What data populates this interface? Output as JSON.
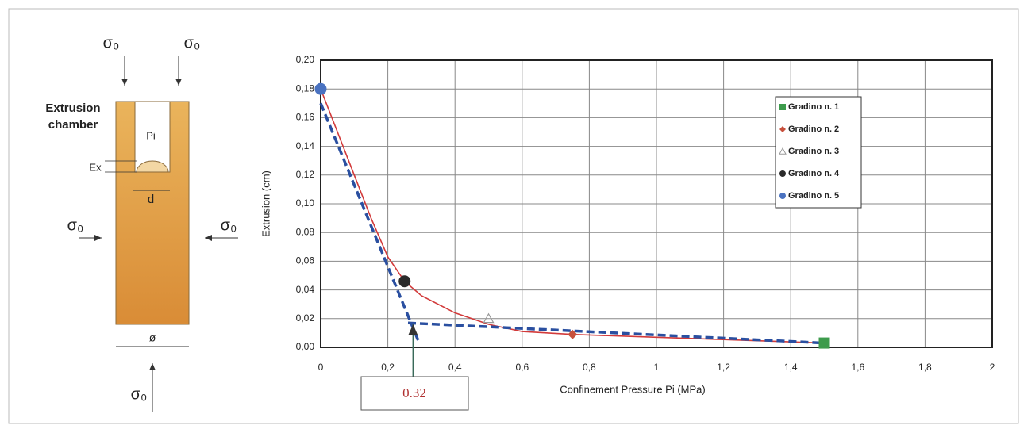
{
  "diagram": {
    "stress_labels": [
      "σ₀",
      "σ₀",
      "σ₀",
      "σ₀",
      "σ₀"
    ],
    "chamber_label": [
      "Extrusion",
      "chamber"
    ],
    "pressure_label": "Pi",
    "extrusion_label": "Ex",
    "diameter_label": "d",
    "width_label": "ø"
  },
  "chart_data": {
    "type": "scatter",
    "x_label": "Confinement Pressure Pi (MPa)",
    "y_label": "Extrusion (cm)",
    "xlim": [
      0,
      2
    ],
    "ylim": [
      0,
      0.2
    ],
    "xticks": [
      0,
      {
        "value": 0.2,
        "label": "0,2"
      },
      {
        "value": 0.4,
        "label": "0,4"
      },
      {
        "value": 0.6,
        "label": "0,6"
      },
      {
        "value": 0.8,
        "label": "0,8"
      },
      1,
      {
        "value": 1.2,
        "label": "1,2"
      },
      {
        "value": 1.4,
        "label": "1,4"
      },
      {
        "value": 1.6,
        "label": "1,6"
      },
      {
        "value": 1.8,
        "label": "1,8"
      },
      2
    ],
    "yticks": [
      {
        "value": 0,
        "label": "0,00"
      },
      {
        "value": 0.02,
        "label": "0,02"
      },
      {
        "value": 0.04,
        "label": "0,04"
      },
      {
        "value": 0.06,
        "label": "0,06"
      },
      {
        "value": 0.08,
        "label": "0,08"
      },
      {
        "value": 0.1,
        "label": "0,10"
      },
      {
        "value": 0.12,
        "label": "0,12"
      },
      {
        "value": 0.14,
        "label": "0,14"
      },
      {
        "value": 0.16,
        "label": "0,16"
      },
      {
        "value": 0.18,
        "label": "0,18"
      },
      {
        "value": 0.2,
        "label": "0,20"
      }
    ],
    "grid": true,
    "legend": "upper right",
    "series": [
      {
        "name": "Gradino n. 1",
        "color": "#3d9b4c",
        "marker": "square",
        "x": [
          1.5
        ],
        "values": [
          0.003
        ]
      },
      {
        "name": "Gradino n. 2",
        "color": "#c8503c",
        "marker": "diamond",
        "x": [
          0.75
        ],
        "values": [
          0.009
        ]
      },
      {
        "name": "Gradino n. 3",
        "color": "#9a9a9a",
        "marker": "triangle",
        "x": [
          0.5
        ],
        "values": [
          0.02
        ]
      },
      {
        "name": "Gradino n. 4",
        "color": "#2b2b2b",
        "marker": "circle",
        "x": [
          0.25
        ],
        "values": [
          0.046
        ]
      },
      {
        "name": "Gradino n. 5",
        "color": "#4a72c0",
        "marker": "circle",
        "x": [
          0
        ],
        "values": [
          0.18
        ]
      }
    ],
    "fit_curve": {
      "color": "#d23a3a",
      "x": [
        0,
        0.05,
        0.1,
        0.15,
        0.2,
        0.25,
        0.3,
        0.4,
        0.5,
        0.6,
        0.75,
        1,
        1.25,
        1.5
      ],
      "values": [
        0.18,
        0.15,
        0.12,
        0.09,
        0.063,
        0.046,
        0.036,
        0.024,
        0.016,
        0.011,
        0.009,
        0.007,
        0.005,
        0.003
      ]
    },
    "tangent_lines": {
      "color": "#2a4fa0",
      "lines": [
        {
          "x": [
            0,
            0.29
          ],
          "values": [
            0.17,
            0.005
          ]
        },
        {
          "x": [
            0.26,
            1.5
          ],
          "values": [
            0.017,
            0.003
          ]
        }
      ]
    },
    "annotation": {
      "text": "0.32",
      "x": 0.275,
      "y": 0.016
    }
  }
}
